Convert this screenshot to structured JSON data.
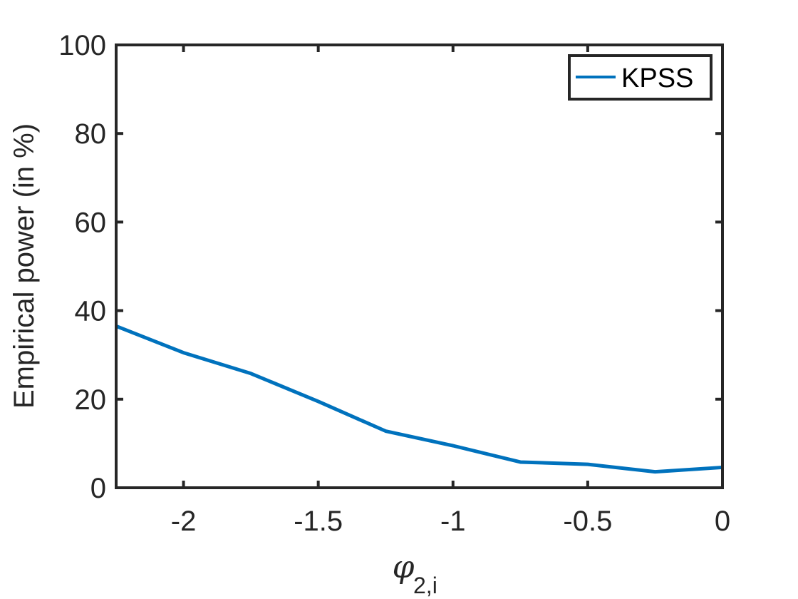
{
  "chart_data": {
    "type": "line",
    "xlabel": {
      "symbol": "φ",
      "subscript": "2,i"
    },
    "ylabel": "Empirical power (in %)",
    "xlim": [
      -2.25,
      0
    ],
    "ylim": [
      0,
      100
    ],
    "xticks": [
      -2,
      -1.5,
      -1,
      -0.5,
      0
    ],
    "xtick_labels": [
      "-2",
      "-1.5",
      "-1",
      "-0.5",
      "0"
    ],
    "yticks": [
      0,
      20,
      40,
      60,
      80,
      100
    ],
    "ytick_labels": [
      "0",
      "20",
      "40",
      "60",
      "80",
      "100"
    ],
    "legend_position": "top-right",
    "grid": false,
    "series": [
      {
        "name": "KPSS",
        "color": "#0072BD",
        "x": [
          -2.25,
          -2.0,
          -1.75,
          -1.5,
          -1.25,
          -1.0,
          -0.75,
          -0.5,
          -0.25,
          0.0
        ],
        "y": [
          36.5,
          30.5,
          25.8,
          19.5,
          12.8,
          9.5,
          5.8,
          5.3,
          3.6,
          4.6
        ]
      }
    ]
  }
}
